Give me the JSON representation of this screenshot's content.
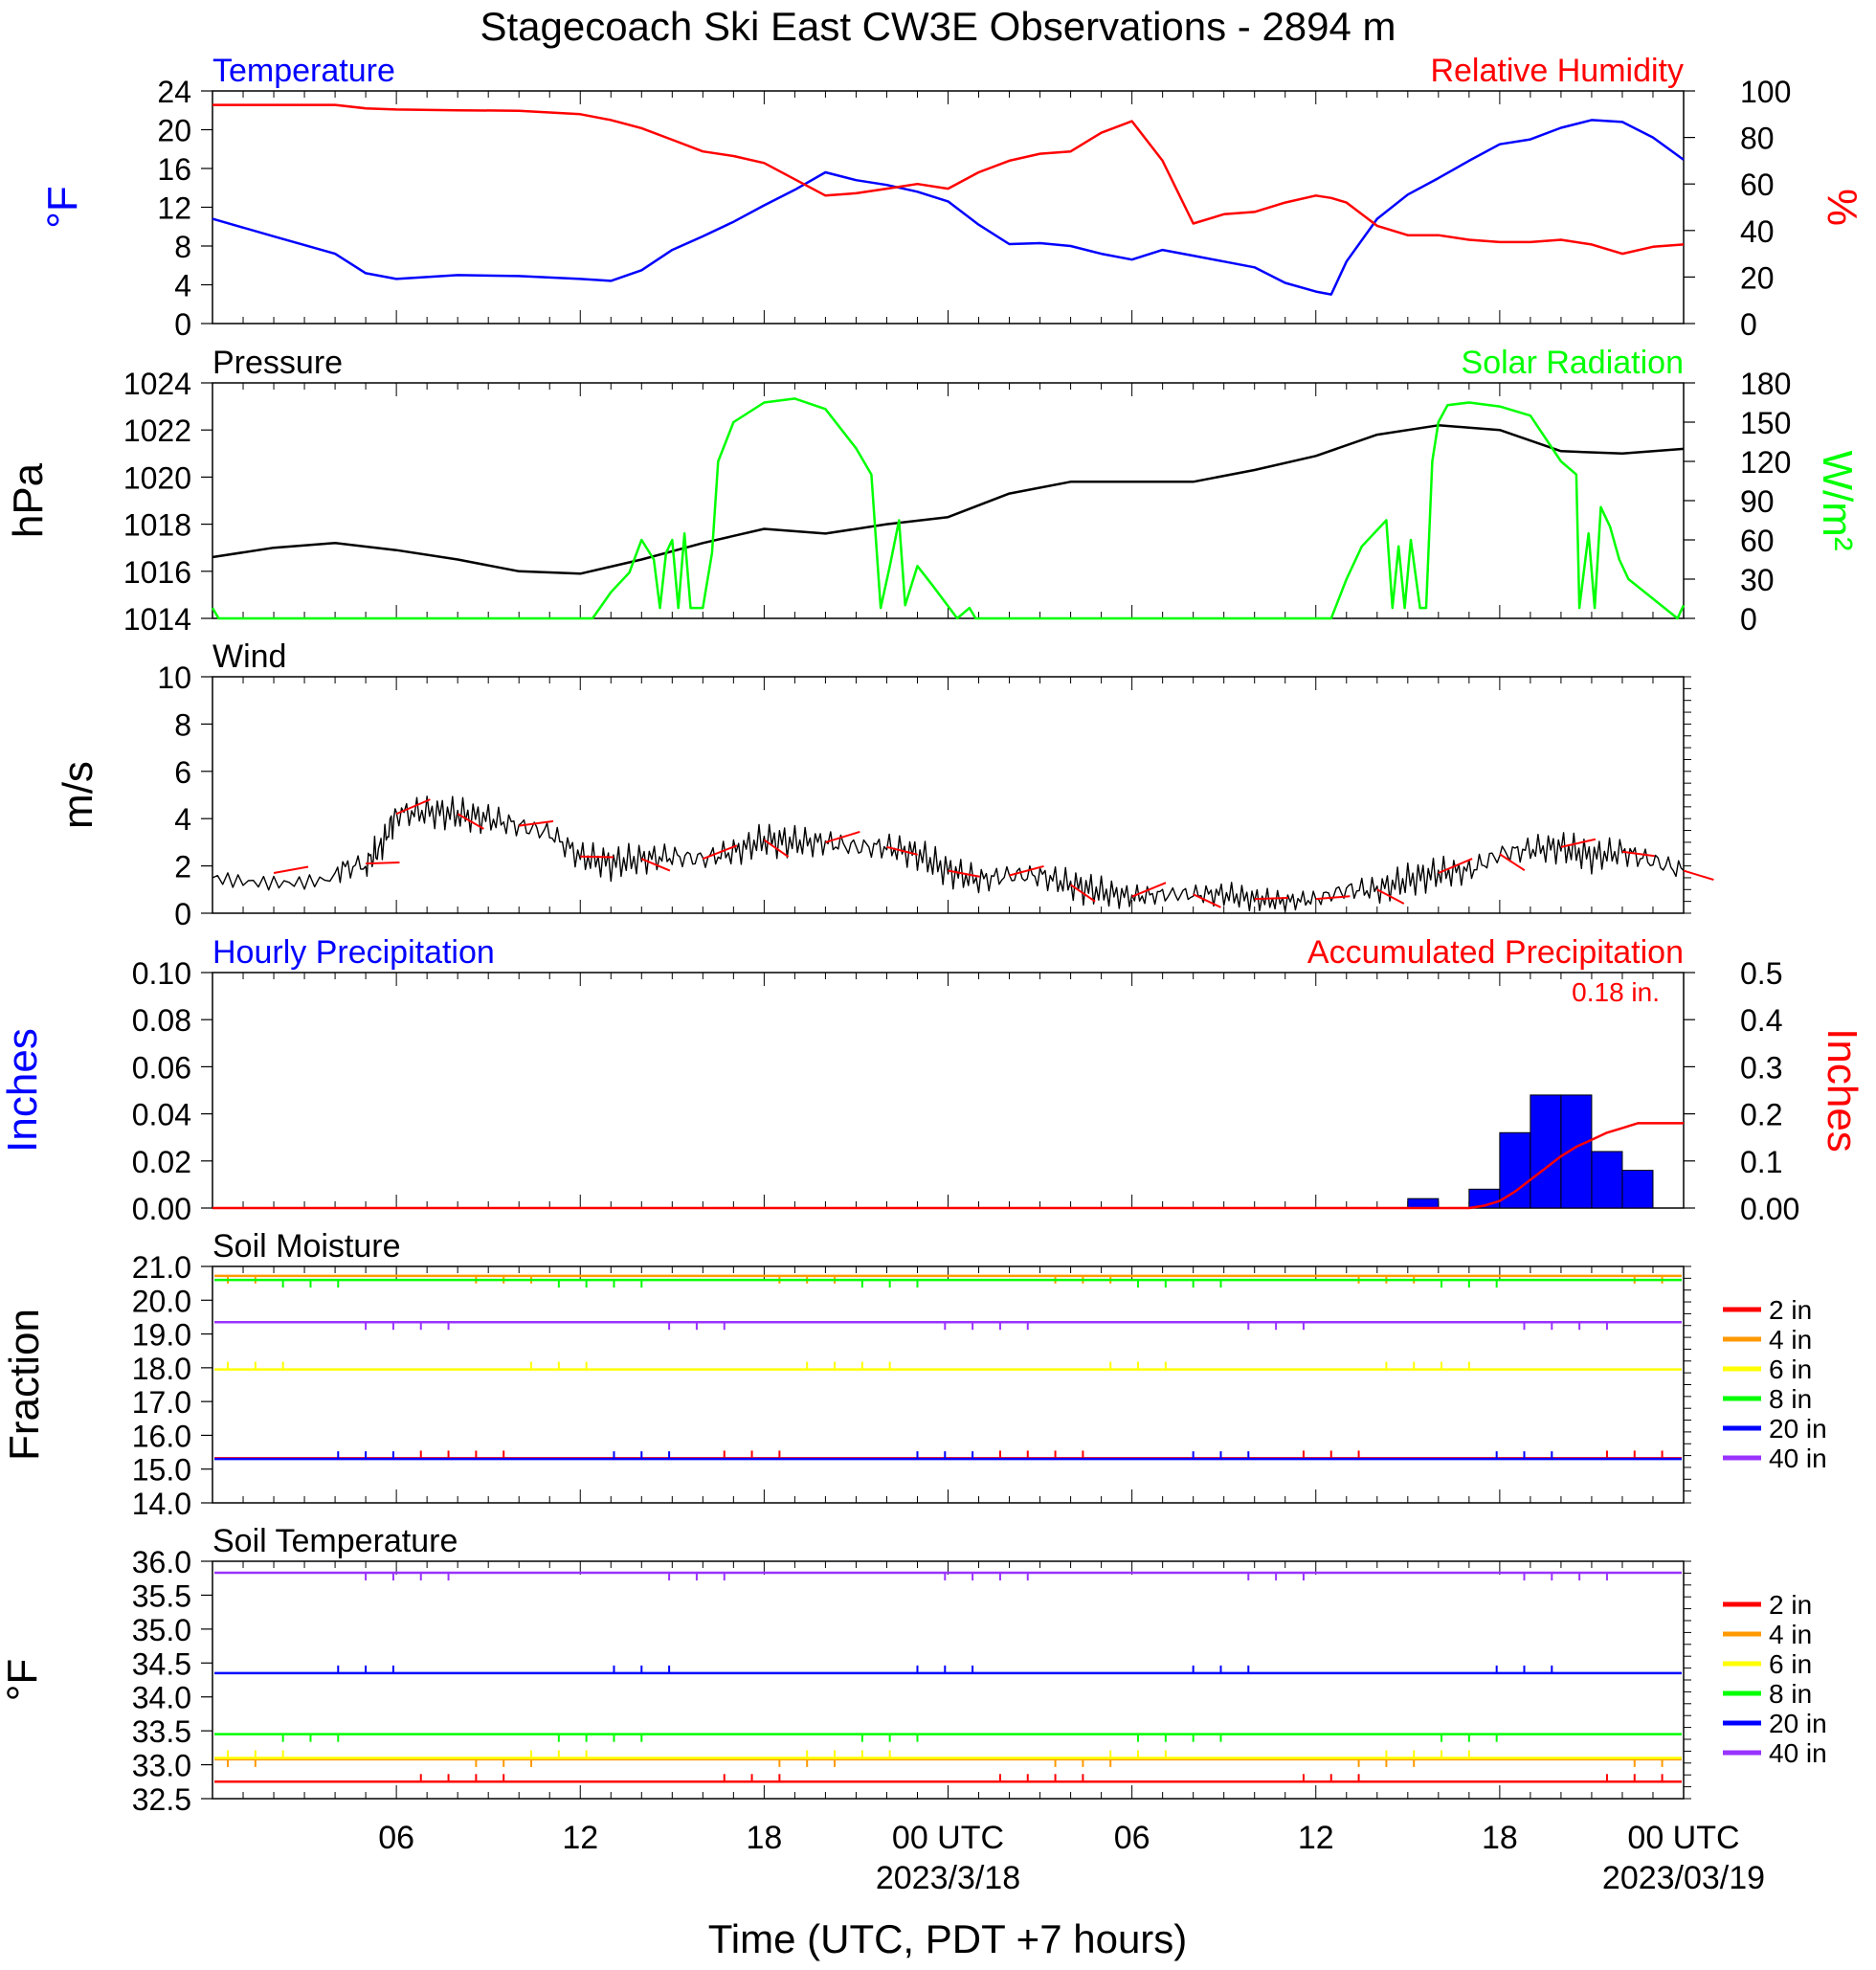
{
  "title": "Stagecoach Ski East CW3E Observations - 2894 m",
  "x_axis": {
    "label": "Time (UTC, PDT +7 hours)",
    "ticks": [
      {
        "hour": 6,
        "label": "06"
      },
      {
        "hour": 12,
        "label": "12"
      },
      {
        "hour": 18,
        "label": "18"
      },
      {
        "hour": 24,
        "label": "00 UTC",
        "date": "2023/3/18"
      },
      {
        "hour": 30,
        "label": "06"
      },
      {
        "hour": 36,
        "label": "12"
      },
      {
        "hour": 42,
        "label": "18"
      },
      {
        "hour": 48,
        "label": "00 UTC",
        "date": "2023/03/19"
      }
    ]
  },
  "colors": {
    "temperature": "#0000ff",
    "humidity": "#ff0000",
    "pressure": "#000000",
    "solar": "#00ff00",
    "wind": "#000000",
    "barb": "#ff0000",
    "hourly_precip": "#0000ff",
    "accum_precip": "#ff0000",
    "depth_2in": "#ff0000",
    "depth_4in": "#ff9900",
    "depth_6in": "#ffff00",
    "depth_8in": "#00ff00",
    "depth_20in": "#0000ff",
    "depth_40in": "#9933ff"
  },
  "chart_data": [
    {
      "type": "line",
      "title_left": "Temperature",
      "title_right": "Relative Humidity",
      "ylabel_left": "°F",
      "ylabel_right": "%",
      "ylim_left": [
        0,
        24
      ],
      "ylim_right": [
        0,
        100
      ],
      "yticks_left": [
        "0",
        "4",
        "8",
        "12",
        "16",
        "20",
        "24"
      ],
      "yticks_right": [
        "0",
        "20",
        "40",
        "60",
        "80",
        "100"
      ],
      "x_hours": [
        0,
        2,
        4,
        5,
        6,
        8,
        10,
        12,
        13,
        14,
        15,
        16,
        17,
        18,
        19,
        20,
        21,
        22,
        23,
        24,
        25,
        26,
        27,
        28,
        29,
        30,
        31,
        32,
        33,
        34,
        35,
        36,
        36.5,
        37,
        38,
        39,
        40,
        41,
        42,
        43,
        44,
        45,
        46,
        47,
        48
      ],
      "series": [
        {
          "key": "temperature",
          "axis": "left",
          "values": [
            10.8,
            9.0,
            7.2,
            5.2,
            4.6,
            5.0,
            4.9,
            4.6,
            4.4,
            5.5,
            7.6,
            9.0,
            10.5,
            12.2,
            13.8,
            15.6,
            14.8,
            14.3,
            13.6,
            12.6,
            10.2,
            8.2,
            8.3,
            8.0,
            7.2,
            6.6,
            7.6,
            7.0,
            6.4,
            5.8,
            4.2,
            3.3,
            3.0,
            6.4,
            10.8,
            13.3,
            15.0,
            16.8,
            18.5,
            19.0,
            20.2,
            21.0,
            20.8,
            19.2,
            16.9
          ]
        },
        {
          "key": "humidity",
          "axis": "right",
          "values": [
            94.0,
            94.0,
            94.0,
            92.5,
            92.0,
            91.7,
            91.5,
            90.0,
            87.5,
            84.0,
            79.0,
            74.0,
            72.0,
            69.0,
            62.0,
            55.0,
            56.0,
            58.0,
            60.0,
            58.0,
            65.0,
            70.0,
            73.0,
            74.0,
            82.0,
            87.0,
            70.0,
            43.0,
            47.0,
            48.0,
            52.0,
            55.0,
            54.0,
            52.0,
            42.0,
            38.0,
            38.0,
            36.0,
            35.0,
            35.0,
            36.0,
            34.0,
            30.0,
            33.0,
            34.0
          ]
        }
      ]
    },
    {
      "type": "line",
      "title_left": "Pressure",
      "title_right": "Solar Radiation",
      "ylabel_left": "hPa",
      "ylabel_right": "W/m²",
      "ylim_left": [
        1014,
        1024
      ],
      "ylim_right": [
        0,
        180
      ],
      "yticks_left": [
        "1014",
        "1016",
        "1018",
        "1020",
        "1022",
        "1024"
      ],
      "yticks_right": [
        "0",
        "30",
        "60",
        "90",
        "120",
        "150",
        "180"
      ],
      "series": [
        {
          "key": "pressure",
          "axis": "left",
          "x_hours": [
            0,
            2,
            4,
            6,
            8,
            10,
            12,
            14,
            16,
            18,
            20,
            22,
            24,
            26,
            28,
            30,
            32,
            34,
            36,
            38,
            40,
            41,
            42,
            44,
            46,
            48
          ],
          "values": [
            1016.6,
            1017.0,
            1017.2,
            1016.9,
            1016.5,
            1016.0,
            1015.9,
            1016.5,
            1017.2,
            1017.8,
            1017.6,
            1018.0,
            1018.3,
            1019.3,
            1019.8,
            1019.8,
            1019.8,
            1020.3,
            1020.9,
            1021.8,
            1022.2,
            1022.1,
            1022.0,
            1021.1,
            1021.0,
            1021.2
          ]
        },
        {
          "key": "solar",
          "axis": "right",
          "x_hours": [
            0,
            0.2,
            12.4,
            13.0,
            13.2,
            13.6,
            14.0,
            14.4,
            14.6,
            14.8,
            15.0,
            15.2,
            15.4,
            15.6,
            16.0,
            16.3,
            16.5,
            17.0,
            18.0,
            19.0,
            20.0,
            21.0,
            21.5,
            21.8,
            22.1,
            22.4,
            22.6,
            23.0,
            23.5,
            24.3,
            24.7,
            24.9,
            25.2,
            36.5,
            37.0,
            37.5,
            38.3,
            38.5,
            38.7,
            38.9,
            39.1,
            39.4,
            39.6,
            39.8,
            40.0,
            40.3,
            41.0,
            42.0,
            43.0,
            44.0,
            44.5,
            44.6,
            44.9,
            45.1,
            45.3,
            45.6,
            45.9,
            46.2,
            47.8,
            48.0
          ],
          "values": [
            8,
            0,
            0,
            20,
            25,
            35,
            60,
            45,
            8,
            50,
            60,
            8,
            65,
            8,
            8,
            50,
            120,
            150,
            165,
            168,
            160,
            130,
            110,
            8,
            40,
            75,
            10,
            40,
            25,
            0,
            8,
            0,
            0,
            0,
            30,
            55,
            75,
            8,
            55,
            8,
            60,
            8,
            8,
            120,
            150,
            163,
            165,
            162,
            155,
            120,
            110,
            8,
            65,
            8,
            85,
            70,
            45,
            30,
            0,
            10
          ]
        }
      ]
    },
    {
      "type": "line",
      "title_left": "Wind",
      "ylabel_left": "m/s",
      "ylim_left": [
        0,
        10
      ],
      "yticks_left": [
        "0",
        "2",
        "4",
        "6",
        "8",
        "10"
      ],
      "x_hours": [
        0,
        2,
        4,
        5,
        5.5,
        6,
        7,
        8,
        9,
        10,
        11,
        12,
        13,
        14,
        15,
        16,
        17,
        18,
        19,
        20,
        21,
        22,
        23,
        24,
        25,
        26,
        27,
        28,
        29,
        30,
        31,
        32,
        33,
        34,
        35,
        36,
        37,
        38,
        39,
        40,
        41,
        42,
        43,
        44,
        45,
        46,
        47,
        48
      ],
      "series": [
        {
          "key": "wind",
          "axis": "left",
          "values": [
            1.5,
            1.7,
            1.8,
            2.1,
            2.8,
            4.2,
            4.3,
            4.2,
            4.0,
            3.7,
            3.4,
            2.4,
            2.1,
            2.3,
            2.4,
            2.3,
            2.6,
            3.1,
            3.0,
            3.0,
            2.8,
            2.8,
            2.5,
            1.8,
            1.4,
            1.6,
            1.6,
            1.2,
            0.9,
            0.7,
            0.8,
            0.8,
            0.8,
            0.6,
            0.5,
            0.6,
            1.0,
            1.0,
            1.4,
            1.7,
            1.8,
            2.5,
            2.7,
            2.8,
            2.4,
            2.6,
            2.2,
            1.8
          ]
        }
      ]
    },
    {
      "type": "bar",
      "title_left": "Hourly Precipitation",
      "title_right": "Accumulated Precipitation",
      "total_text": "0.18 in.",
      "ylabel_left": "Inches",
      "ylabel_right": "Inches",
      "ylim_left": [
        0,
        0.1
      ],
      "ylim_right": [
        0,
        0.5
      ],
      "yticks_left": [
        "0.00",
        "0.02",
        "0.04",
        "0.06",
        "0.08",
        "0.10"
      ],
      "yticks_right": [
        "0.00",
        "0.1",
        "0.2",
        "0.3",
        "0.4",
        "0.5"
      ],
      "bars": [
        {
          "start_hour": 39,
          "value": 0.004
        },
        {
          "start_hour": 41,
          "value": 0.008
        },
        {
          "start_hour": 42,
          "value": 0.032
        },
        {
          "start_hour": 43,
          "value": 0.048
        },
        {
          "start_hour": 44,
          "value": 0.048
        },
        {
          "start_hour": 45,
          "value": 0.024
        },
        {
          "start_hour": 46,
          "value": 0.016
        }
      ],
      "accumulated": {
        "key": "accum_precip",
        "x_hours": [
          0,
          41,
          41.5,
          42,
          42.5,
          43,
          43.5,
          44,
          44.5,
          45,
          45.5,
          46,
          46.5,
          47,
          48
        ],
        "values": [
          0,
          0,
          0.005,
          0.015,
          0.035,
          0.06,
          0.085,
          0.11,
          0.13,
          0.145,
          0.16,
          0.17,
          0.18,
          0.18,
          0.18
        ]
      }
    },
    {
      "type": "line",
      "title_left": "Soil Moisture",
      "ylabel_left": "Fraction",
      "ylim_left": [
        14.0,
        21.0
      ],
      "yticks_left": [
        "14.0",
        "15.0",
        "16.0",
        "17.0",
        "18.0",
        "19.0",
        "20.0",
        "21.0"
      ],
      "series": [
        {
          "key": "depth_2in",
          "name": "2 in",
          "level": 15.32
        },
        {
          "key": "depth_4in",
          "name": "4 in",
          "level": 20.72
        },
        {
          "key": "depth_6in",
          "name": "6 in",
          "level": 17.95
        },
        {
          "key": "depth_8in",
          "name": "8 in",
          "level": 20.6
        },
        {
          "key": "depth_20in",
          "name": "20 in",
          "level": 15.3
        },
        {
          "key": "depth_40in",
          "name": "40 in",
          "level": 19.35
        }
      ]
    },
    {
      "type": "line",
      "title_left": "Soil Temperature",
      "ylabel_left": "°F",
      "ylim_left": [
        32.5,
        36.0
      ],
      "yticks_left": [
        "32.5",
        "33.0",
        "33.5",
        "34.0",
        "34.5",
        "35.0",
        "35.5",
        "36.0"
      ],
      "series": [
        {
          "key": "depth_2in",
          "name": "2 in",
          "level": 32.75
        },
        {
          "key": "depth_4in",
          "name": "4 in",
          "level": 33.08
        },
        {
          "key": "depth_6in",
          "name": "6 in",
          "level": 33.1
        },
        {
          "key": "depth_8in",
          "name": "8 in",
          "level": 33.45
        },
        {
          "key": "depth_20in",
          "name": "20 in",
          "level": 34.35
        },
        {
          "key": "depth_40in",
          "name": "40 in",
          "level": 35.83
        }
      ]
    }
  ]
}
